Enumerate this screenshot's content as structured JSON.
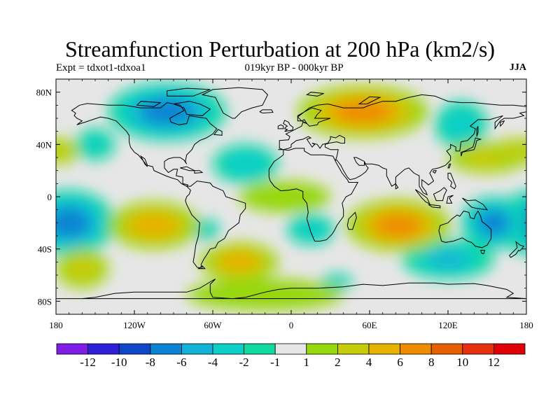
{
  "title": "Streamfunction Perturbation at 200 hPa (km2/s)",
  "left_label": "Expt = tdxot1-tdxoa1",
  "center_label": "019kyr BP - 000kyr BP",
  "right_label": "JJA",
  "map": {
    "lon_range": [
      -180,
      180
    ],
    "lat_range": [
      -90,
      90
    ],
    "lat_ticks": [
      {
        "value": 80,
        "label": "80N"
      },
      {
        "value": 40,
        "label": "40N"
      },
      {
        "value": 0,
        "label": "0"
      },
      {
        "value": -40,
        "label": "40S"
      },
      {
        "value": -80,
        "label": "80S"
      }
    ],
    "lon_ticks": [
      {
        "value": -180,
        "label": "180"
      },
      {
        "value": -120,
        "label": "120W"
      },
      {
        "value": -60,
        "label": "60W"
      },
      {
        "value": 0,
        "label": "0"
      },
      {
        "value": 60,
        "label": "60E"
      },
      {
        "value": 120,
        "label": "120E"
      },
      {
        "value": 180,
        "label": "180"
      }
    ],
    "background_color": "#e6e6e6"
  },
  "colorbar": {
    "colors": [
      "#7f1ce6",
      "#2e20d6",
      "#1046c8",
      "#0c82d2",
      "#12b2d6",
      "#0ccfc8",
      "#10d89e",
      "#e6e6e6",
      "#97d710",
      "#c6cc0a",
      "#e5b200",
      "#ee8c00",
      "#e66000",
      "#e63010",
      "#e00008"
    ],
    "labels": [
      "-12",
      "-10",
      "-8",
      "-6",
      "-4",
      "-2",
      "-1",
      "1",
      "2",
      "4",
      "6",
      "8",
      "10",
      "12"
    ]
  },
  "chart_data": {
    "type": "heatmap",
    "title": "Streamfunction Perturbation at 200 hPa (km2/s)",
    "subtitle": "019kyr BP - 000kyr BP",
    "season": "JJA",
    "experiment": "Expt = tdxot1-tdxoa1",
    "units": "km2/s",
    "levels": [
      -12,
      -10,
      -8,
      -6,
      -4,
      -2,
      -1,
      1,
      2,
      4,
      6,
      8,
      10,
      12
    ],
    "xlim": [
      -180,
      180
    ],
    "ylim": [
      -90,
      90
    ],
    "anomaly_centers": [
      {
        "lon": -95,
        "lat": 65,
        "lon_radius": 45,
        "lat_radius": 22,
        "value": -7
      },
      {
        "lon": -170,
        "lat": -20,
        "lon_radius": 35,
        "lat_radius": 25,
        "value": -7
      },
      {
        "lon": 155,
        "lat": -20,
        "lon_radius": 25,
        "lat_radius": 20,
        "value": -7
      },
      {
        "lon": 130,
        "lat": 55,
        "lon_radius": 20,
        "lat_radius": 18,
        "value": -3
      },
      {
        "lon": 120,
        "lat": -48,
        "lon_radius": 35,
        "lat_radius": 15,
        "value": -4
      },
      {
        "lon": 15,
        "lat": -25,
        "lon_radius": 18,
        "lat_radius": 12,
        "value": -2.5
      },
      {
        "lon": -35,
        "lat": 25,
        "lon_radius": 25,
        "lat_radius": 15,
        "value": -2.5
      },
      {
        "lon": -150,
        "lat": 40,
        "lon_radius": 15,
        "lat_radius": 12,
        "value": -2
      },
      {
        "lon": 35,
        "lat": -65,
        "lon_radius": 12,
        "lat_radius": 6,
        "value": -2
      },
      {
        "lon": -65,
        "lat": -25,
        "lon_radius": 10,
        "lat_radius": 8,
        "value": -2
      },
      {
        "lon": 55,
        "lat": 65,
        "lon_radius": 50,
        "lat_radius": 20,
        "value": 8
      },
      {
        "lon": 82,
        "lat": -22,
        "lon_radius": 40,
        "lat_radius": 20,
        "value": 8
      },
      {
        "lon": -105,
        "lat": -22,
        "lon_radius": 35,
        "lat_radius": 18,
        "value": 4.5
      },
      {
        "lon": -40,
        "lat": -50,
        "lon_radius": 30,
        "lat_radius": 15,
        "value": 4.5
      },
      {
        "lon": -160,
        "lat": -55,
        "lon_radius": 20,
        "lat_radius": 15,
        "value": 3
      },
      {
        "lon": -5,
        "lat": 0,
        "lon_radius": 35,
        "lat_radius": 12,
        "value": 2
      },
      {
        "lon": 150,
        "lat": 30,
        "lon_radius": 30,
        "lat_radius": 12,
        "value": 2.5
      },
      {
        "lon": -175,
        "lat": 35,
        "lon_radius": 12,
        "lat_radius": 10,
        "value": 3
      },
      {
        "lon": 170,
        "lat": 35,
        "lon_radius": 12,
        "lat_radius": 10,
        "value": 3
      },
      {
        "lon": -20,
        "lat": -75,
        "lon_radius": 60,
        "lat_radius": 12,
        "value": 2
      }
    ]
  }
}
